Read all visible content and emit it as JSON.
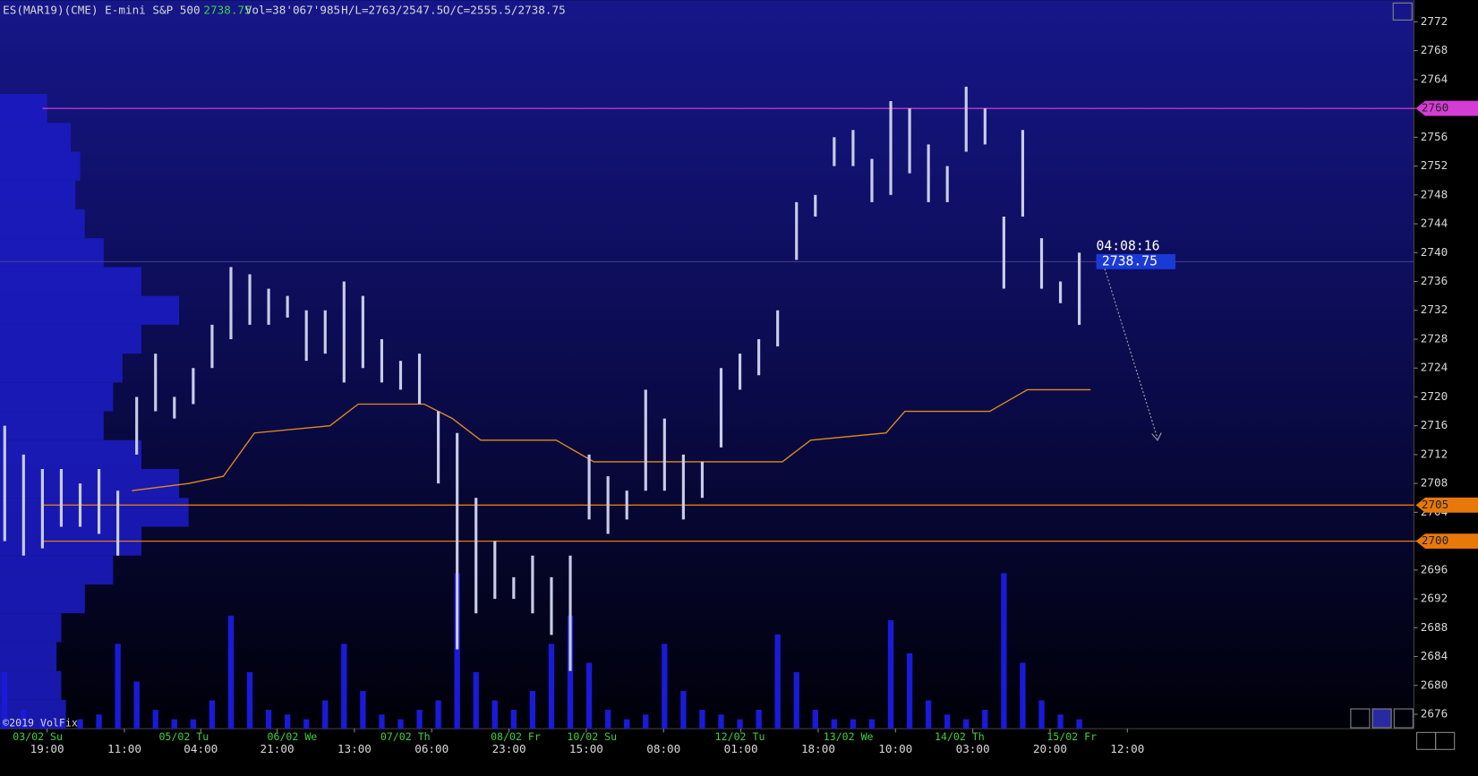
{
  "chart_data": {
    "type": "ohlc",
    "title": "ES(MAR19)(CME) E-mini S&P 500",
    "last": 2738.75,
    "volume_text": "Vol=38'067'985",
    "high_low_text": "H/L=2763/2547.5",
    "open_close_text": "O/C=2555.5/2738.75",
    "timer": "04:08:16",
    "copyright": "©2019 VolFix",
    "bar_color": "#c8cce8",
    "last_color": "#3cd23c",
    "ylim": [
      2674,
      2775
    ],
    "yticks": [
      2676,
      2680,
      2684,
      2688,
      2692,
      2696,
      2700,
      2704,
      2708,
      2712,
      2716,
      2720,
      2724,
      2728,
      2732,
      2736,
      2740,
      2744,
      2748,
      2752,
      2756,
      2760,
      2764,
      2768,
      2772
    ],
    "xlim": [
      -0.25,
      74.75
    ],
    "xticks": [
      {
        "value": 2.25,
        "label": "19:00"
      },
      {
        "value": 6.35,
        "label": "11:00"
      },
      {
        "value": 10.4,
        "label": "04:00"
      },
      {
        "value": 14.45,
        "label": "21:00"
      },
      {
        "value": 18.55,
        "label": "13:00"
      },
      {
        "value": 22.65,
        "label": "06:00"
      },
      {
        "value": 26.75,
        "label": "23:00"
      },
      {
        "value": 30.85,
        "label": "15:00"
      },
      {
        "value": 34.95,
        "label": "08:00"
      },
      {
        "value": 39.05,
        "label": "01:00"
      },
      {
        "value": 43.15,
        "label": "18:00"
      },
      {
        "value": 47.25,
        "label": "10:00"
      },
      {
        "value": 51.35,
        "label": "03:00"
      },
      {
        "value": 55.45,
        "label": "20:00"
      },
      {
        "value": 59.55,
        "label": "12:00"
      }
    ],
    "date_ticks": [
      {
        "value": 1.75,
        "label": "03/02 Su"
      },
      {
        "value": 9.5,
        "label": "05/02 Tu"
      },
      {
        "value": 15.25,
        "label": "06/02 We"
      },
      {
        "value": 21.25,
        "label": "07/02 Th"
      },
      {
        "value": 27.1,
        "label": "08/02 Fr"
      },
      {
        "value": 31.15,
        "label": "10/02 Su"
      },
      {
        "value": 39,
        "label": "12/02 Tu"
      },
      {
        "value": 44.75,
        "label": "13/02 We"
      },
      {
        "value": 50.65,
        "label": "14/02 Th"
      },
      {
        "value": 56.6,
        "label": "15/02 Fr"
      }
    ],
    "x": [
      0,
      1,
      2,
      3,
      4,
      5,
      6,
      7,
      8,
      9,
      10,
      11,
      12,
      13,
      14,
      15,
      16,
      17,
      18,
      19,
      20,
      21,
      22,
      23,
      24,
      25,
      26,
      27,
      28,
      29,
      30,
      31,
      32,
      33,
      34,
      35,
      36,
      37,
      38,
      39,
      40,
      41,
      42,
      43,
      44,
      45,
      46,
      47,
      48,
      49,
      50,
      51,
      52,
      53,
      54,
      55,
      56,
      57
    ],
    "low": [
      2700,
      2698,
      2699,
      2702,
      2702,
      2701,
      2698,
      2712,
      2718,
      2717,
      2719,
      2724,
      2728,
      2730,
      2730,
      2731,
      2725,
      2726,
      2722,
      2724,
      2722,
      2721,
      2719,
      2708,
      2685,
      2690,
      2692,
      2692,
      2690,
      2687,
      2682,
      2703,
      2701,
      2703,
      2707,
      2707,
      2703,
      2706,
      2713,
      2721,
      2723,
      2727,
      2739,
      2745,
      2752,
      2752,
      2747,
      2748,
      2751,
      2747,
      2747,
      2754,
      2755,
      2735,
      2745,
      2735,
      2733,
      2730
    ],
    "high": [
      2716,
      2712,
      2710,
      2710,
      2708,
      2710,
      2707,
      2720,
      2726,
      2720,
      2724,
      2730,
      2738,
      2737,
      2735,
      2734,
      2732,
      2732,
      2736,
      2734,
      2728,
      2725,
      2726,
      2718,
      2715,
      2706,
      2700,
      2695,
      2698,
      2695,
      2698,
      2712,
      2709,
      2707,
      2721,
      2717,
      2712,
      2711,
      2724,
      2726,
      2728,
      2732,
      2747,
      2748,
      2756,
      2757,
      2753,
      2761,
      2760,
      2755,
      2752,
      2763,
      2760,
      2745,
      2757,
      2742,
      2736,
      2740
    ],
    "volume": [
      60,
      20,
      10,
      10,
      10,
      15,
      90,
      50,
      20,
      10,
      10,
      30,
      120,
      60,
      20,
      15,
      10,
      30,
      90,
      40,
      15,
      10,
      20,
      30,
      165,
      60,
      30,
      20,
      40,
      90,
      120,
      70,
      20,
      10,
      15,
      90,
      40,
      20,
      15,
      10,
      20,
      100,
      60,
      20,
      10,
      10,
      10,
      115,
      80,
      30,
      15,
      10,
      20,
      165,
      70,
      30,
      15,
      10
    ],
    "volume_color": "#1a1ad8",
    "vwap": {
      "color": "#e08a1e",
      "x": [
        6.75,
        9.75,
        11.6,
        13.25,
        17.25,
        18.75,
        22.25,
        23.75,
        25.25,
        29.25,
        31.25,
        41.25,
        42.75,
        46.75,
        47.75,
        52.25,
        54.25,
        57.6
      ],
      "values": [
        2707,
        2708,
        2709,
        2715,
        2716,
        2719,
        2719,
        2717,
        2714,
        2714,
        2711,
        2711,
        2714,
        2715,
        2718,
        2718,
        2721,
        2721
      ]
    },
    "levels": [
      {
        "value": 2760,
        "color": "#d43cd4"
      },
      {
        "value": 2705,
        "color": "#e8780a"
      },
      {
        "value": 2700,
        "color": "#e8780a"
      }
    ],
    "profile": {
      "color": "#1c1cc8",
      "prices": [
        2676,
        2680,
        2684,
        2688,
        2692,
        2696,
        2700,
        2704,
        2708,
        2712,
        2716,
        2720,
        2724,
        2728,
        2732,
        2736,
        2740,
        2744,
        2748,
        2752,
        2756,
        2760
      ],
      "values": [
        70,
        65,
        60,
        65,
        90,
        120,
        150,
        200,
        190,
        150,
        110,
        120,
        130,
        150,
        190,
        150,
        110,
        90,
        80,
        85,
        75,
        50
      ]
    }
  }
}
